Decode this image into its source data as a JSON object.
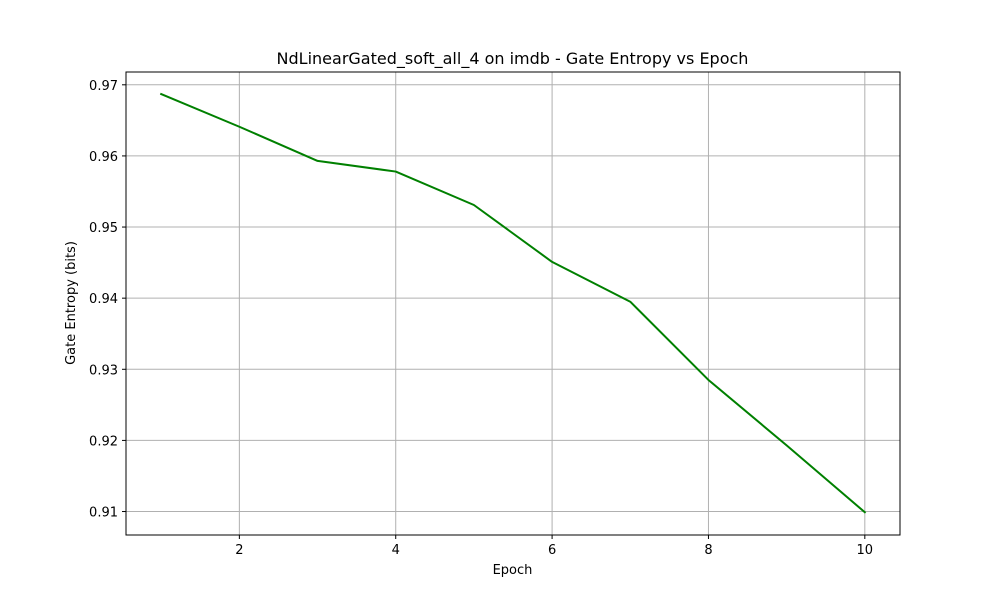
{
  "chart_data": {
    "type": "line",
    "title": "NdLinearGated_soft_all_4 on imdb - Gate Entropy vs Epoch",
    "xlabel": "Epoch",
    "ylabel": "Gate Entropy (bits)",
    "xlim": [
      0.55,
      10.45
    ],
    "ylim": [
      0.9067,
      0.9718
    ],
    "xticks": [
      2,
      4,
      6,
      8,
      10
    ],
    "xtick_labels": [
      "2",
      "4",
      "6",
      "8",
      "10"
    ],
    "yticks": [
      0.91,
      0.92,
      0.93,
      0.94,
      0.95,
      0.96,
      0.97
    ],
    "ytick_labels": [
      "0.91",
      "0.92",
      "0.93",
      "0.94",
      "0.95",
      "0.96",
      "0.97"
    ],
    "grid": true,
    "series": [
      {
        "color": "#008000",
        "x": [
          1,
          2,
          3,
          4,
          5,
          6,
          7,
          8,
          9,
          10
        ],
        "values": [
          0.9687,
          0.9641,
          0.9593,
          0.9578,
          0.9531,
          0.9451,
          0.9395,
          0.9285,
          0.9193,
          0.9099
        ]
      }
    ]
  }
}
